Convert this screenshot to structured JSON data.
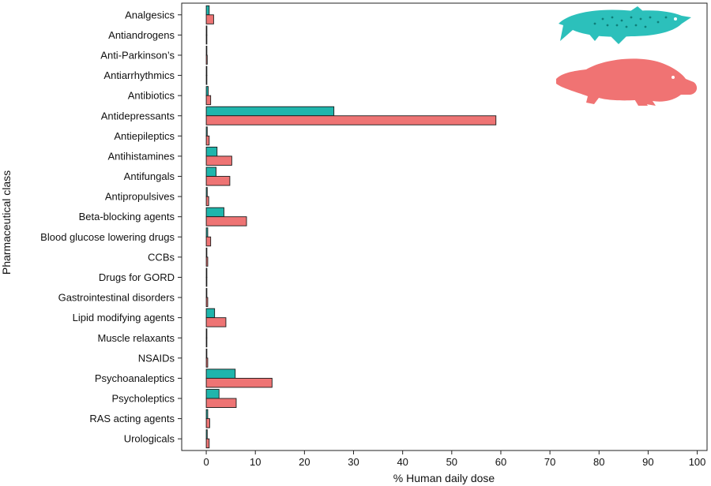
{
  "chart_data": {
    "type": "bar",
    "orientation": "horizontal",
    "title": "",
    "xlabel": "% Human daily dose",
    "ylabel": "Pharmaceutical class",
    "xlim": [
      -5,
      102
    ],
    "xticks": [
      0,
      10,
      20,
      30,
      40,
      50,
      60,
      70,
      80,
      90,
      100
    ],
    "grid": false,
    "legend": "none (species shown as silhouettes, top-right)",
    "categories": [
      "Analgesics",
      "Antiandrogens",
      "Anti-Parkinson’s",
      "Antiarrhythmics",
      "Antibiotics",
      "Antidepressants",
      "Antiepileptics",
      "Antihistamines",
      "Antifungals",
      "Antipropulsives",
      "Beta-blocking agents",
      "Blood glucose lowering drugs",
      "CCBs",
      "Drugs for GORD",
      "Gastrointestinal disorders",
      "Lipid modifying agents",
      "Muscle relaxants",
      "NSAIDs",
      "Psychoanaleptics",
      "Psycholeptics",
      "RAS acting agents",
      "Urologicals"
    ],
    "series": [
      {
        "color": "#1fb5ac",
        "icon": "trout-icon",
        "values": [
          0.6,
          0.05,
          0.1,
          0.05,
          0.4,
          26,
          0.2,
          2.2,
          2.0,
          0.2,
          3.6,
          0.3,
          0.1,
          0.02,
          0.1,
          1.7,
          0.02,
          0.1,
          5.9,
          2.6,
          0.3,
          0.2
        ]
      },
      {
        "color": "#ee7474",
        "icon": "platypus-icon",
        "values": [
          1.5,
          0.1,
          0.2,
          0.1,
          0.9,
          59,
          0.6,
          5.2,
          4.8,
          0.5,
          8.2,
          0.9,
          0.3,
          0.05,
          0.3,
          4.0,
          0.05,
          0.3,
          13.4,
          6.1,
          0.7,
          0.6
        ]
      }
    ]
  }
}
